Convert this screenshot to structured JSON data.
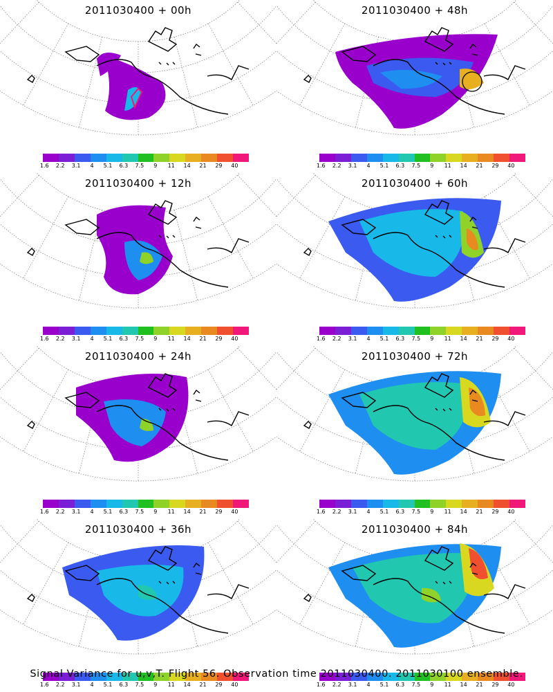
{
  "panels": [
    {
      "title": "2011030400 + 00h"
    },
    {
      "title": "2011030400 + 48h"
    },
    {
      "title": "2011030400 + 12h"
    },
    {
      "title": "2011030400 + 60h"
    },
    {
      "title": "2011030400 + 24h"
    },
    {
      "title": "2011030400 + 72h"
    },
    {
      "title": "2011030400 + 36h"
    },
    {
      "title": "2011030400 + 84h"
    }
  ],
  "colorbar": {
    "labels": [
      "1.6",
      "2.2",
      "3.1",
      "4",
      "5.1",
      "6.3",
      "7.5",
      "9",
      "11",
      "14",
      "21",
      "29",
      "40"
    ],
    "colors": [
      "#9900cc",
      "#7a1fd6",
      "#3a5af0",
      "#1e8ef0",
      "#18b8e8",
      "#22c7b0",
      "#20c020",
      "#8ed22a",
      "#d8d820",
      "#e8b020",
      "#e88a20",
      "#f05030",
      "#f01878"
    ]
  },
  "footer": "Signal Variance for u,v,T. Flight 56. Observation time 2011030400. 2011030100 ensemble."
}
